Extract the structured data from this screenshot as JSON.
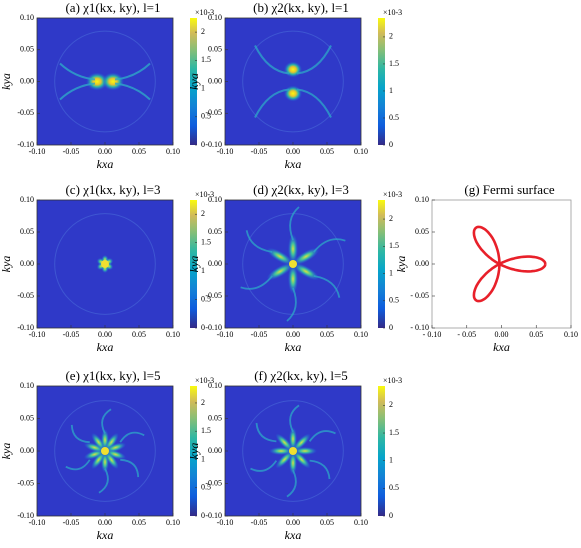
{
  "chart_data": [
    {
      "type": "heatmap",
      "title": "(a) χ1(kx, ky), l=1",
      "xlabel": "kxa",
      "ylabel": "kya",
      "xlim": [
        -0.1,
        0.1
      ],
      "ylim": [
        -0.1,
        0.1
      ],
      "xticks": [
        {
          "value": -0.1,
          "label": "-0.10"
        },
        {
          "value": -0.05,
          "label": "-0.05"
        },
        {
          "value": 0,
          "label": "0.00"
        },
        {
          "value": 0.05,
          "label": "0.05"
        },
        {
          "value": 0.1,
          "label": "0.10"
        }
      ],
      "yticks": [
        {
          "value": -0.1,
          "label": "-0.10"
        },
        {
          "value": -0.05,
          "label": "-0.05"
        },
        {
          "value": 0,
          "label": "0.00"
        },
        {
          "value": 0.05,
          "label": "0.05"
        },
        {
          "value": 0.1,
          "label": "0.10"
        }
      ],
      "colorbar": {
        "lim": [
          0,
          2.25
        ],
        "ticks": [
          0,
          0.5,
          1,
          1.5,
          2
        ],
        "multiplier": "×10-3"
      }
    },
    {
      "type": "heatmap",
      "title": "(b) χ2(kx, ky), l=1",
      "xlabel": "kxa",
      "ylabel": "kya",
      "xlim": [
        -0.1,
        0.1
      ],
      "ylim": [
        -0.1,
        0.1
      ],
      "xticks": [
        {
          "value": -0.1,
          "label": "-0.10"
        },
        {
          "value": -0.05,
          "label": "-0.05"
        },
        {
          "value": 0,
          "label": "0.00"
        },
        {
          "value": 0.05,
          "label": "0.05"
        },
        {
          "value": 0.1,
          "label": "0.10"
        }
      ],
      "yticks": [
        {
          "value": -0.1,
          "label": "-0.10"
        },
        {
          "value": -0.05,
          "label": "-0.05"
        },
        {
          "value": 0,
          "label": "0.00"
        },
        {
          "value": 0.05,
          "label": "0.05"
        },
        {
          "value": 0.1,
          "label": "0.10"
        }
      ],
      "colorbar": {
        "lim": [
          0,
          2.35
        ],
        "ticks": [
          0,
          0.5,
          1,
          1.5,
          2
        ],
        "multiplier": "×10-3"
      }
    },
    {
      "type": "heatmap",
      "title": "(c) χ1(kx, ky), l=3",
      "xlabel": "kxa",
      "ylabel": "kya",
      "xlim": [
        -0.1,
        0.1
      ],
      "ylim": [
        -0.1,
        0.1
      ],
      "xticks": [
        {
          "value": -0.1,
          "label": "-0.10"
        },
        {
          "value": -0.05,
          "label": "-0.05"
        },
        {
          "value": 0,
          "label": "0.00"
        },
        {
          "value": 0.05,
          "label": "0.05"
        },
        {
          "value": 0.1,
          "label": "0.10"
        }
      ],
      "yticks": [
        {
          "value": -0.1,
          "label": "-0.10"
        },
        {
          "value": -0.05,
          "label": "-0.05"
        },
        {
          "value": 0,
          "label": "0.00"
        },
        {
          "value": 0.05,
          "label": "0.05"
        },
        {
          "value": 0.1,
          "label": "0.10"
        }
      ],
      "colorbar": {
        "lim": [
          0,
          2.25
        ],
        "ticks": [
          0,
          0.5,
          1,
          1.5,
          2
        ],
        "multiplier": "×10-3"
      }
    },
    {
      "type": "heatmap",
      "title": "(d) χ2(kx, ky), l=3",
      "xlabel": "kxa",
      "ylabel": "kya",
      "xlim": [
        -0.1,
        0.1
      ],
      "ylim": [
        -0.1,
        0.1
      ],
      "xticks": [
        {
          "value": -0.1,
          "label": "-0.10"
        },
        {
          "value": -0.05,
          "label": "-0.05"
        },
        {
          "value": 0,
          "label": "0.00"
        },
        {
          "value": 0.05,
          "label": "0.05"
        },
        {
          "value": 0.1,
          "label": "0.10"
        }
      ],
      "yticks": [
        {
          "value": -0.1,
          "label": "-0.10"
        },
        {
          "value": -0.05,
          "label": "-0.05"
        },
        {
          "value": 0,
          "label": "0.00"
        },
        {
          "value": 0.05,
          "label": "0.05"
        },
        {
          "value": 0.1,
          "label": "0.10"
        }
      ],
      "colorbar": {
        "lim": [
          0,
          2.35
        ],
        "ticks": [
          0,
          0.5,
          1,
          1.5,
          2
        ],
        "multiplier": "×10-3"
      }
    },
    {
      "type": "curve",
      "title": "(g) Fermi surface",
      "xlabel": "kxa",
      "ylabel": "kya",
      "color": "#e8202a",
      "xlim": [
        -0.1,
        0.1
      ],
      "ylim": [
        -0.1,
        0.1
      ],
      "xticks": [
        {
          "value": -0.1,
          "label": "- 0.10"
        },
        {
          "value": -0.05,
          "label": "- 0.05"
        },
        {
          "value": 0,
          "label": "0.00"
        },
        {
          "value": 0.05,
          "label": "0.05"
        },
        {
          "value": 0.1,
          "label": "0.10"
        }
      ],
      "yticks": [
        {
          "value": -0.1,
          "label": "- 0.10"
        },
        {
          "value": -0.05,
          "label": "- 0.05"
        },
        {
          "value": 0,
          "label": "0.00"
        },
        {
          "value": 0.05,
          "label": "0.05"
        },
        {
          "value": 0.1,
          "label": "0.10"
        }
      ]
    },
    {
      "type": "heatmap",
      "title": "(e) χ1(kx, ky), l=5",
      "xlabel": "kxa",
      "ylabel": "kya",
      "xlim": [
        -0.1,
        0.1
      ],
      "ylim": [
        -0.1,
        0.1
      ],
      "xticks": [
        {
          "value": -0.1,
          "label": "-0.10"
        },
        {
          "value": -0.05,
          "label": "-0.05"
        },
        {
          "value": 0,
          "label": "0.00"
        },
        {
          "value": 0.05,
          "label": "0.05"
        },
        {
          "value": 0.1,
          "label": "0.10"
        }
      ],
      "yticks": [
        {
          "value": -0.1,
          "label": "-0.10"
        },
        {
          "value": -0.05,
          "label": "-0.05"
        },
        {
          "value": 0,
          "label": "0.00"
        },
        {
          "value": 0.05,
          "label": "0.05"
        },
        {
          "value": 0.1,
          "label": "0.10"
        }
      ],
      "colorbar": {
        "lim": [
          0,
          2.3
        ],
        "ticks": [
          0,
          0.5,
          1,
          1.5,
          2
        ],
        "multiplier": "×10-3"
      }
    },
    {
      "type": "heatmap",
      "title": "(f) χ2(kx, ky), l=5",
      "xlabel": "kxa",
      "ylabel": "kya",
      "xlim": [
        -0.1,
        0.1
      ],
      "ylim": [
        -0.1,
        0.1
      ],
      "xticks": [
        {
          "value": -0.1,
          "label": "-0.10"
        },
        {
          "value": -0.05,
          "label": "-0.05"
        },
        {
          "value": 0,
          "label": "0.00"
        },
        {
          "value": 0.05,
          "label": "0.05"
        },
        {
          "value": 0.1,
          "label": "0.10"
        }
      ],
      "yticks": [
        {
          "value": -0.1,
          "label": "-0.10"
        },
        {
          "value": -0.05,
          "label": "-0.05"
        },
        {
          "value": 0,
          "label": "0.00"
        },
        {
          "value": 0.05,
          "label": "0.05"
        },
        {
          "value": 0.1,
          "label": "0.10"
        }
      ],
      "colorbar": {
        "lim": [
          0,
          2.35
        ],
        "ticks": [
          0,
          0.5,
          1,
          1.5,
          2
        ],
        "multiplier": "×10-3"
      }
    }
  ]
}
